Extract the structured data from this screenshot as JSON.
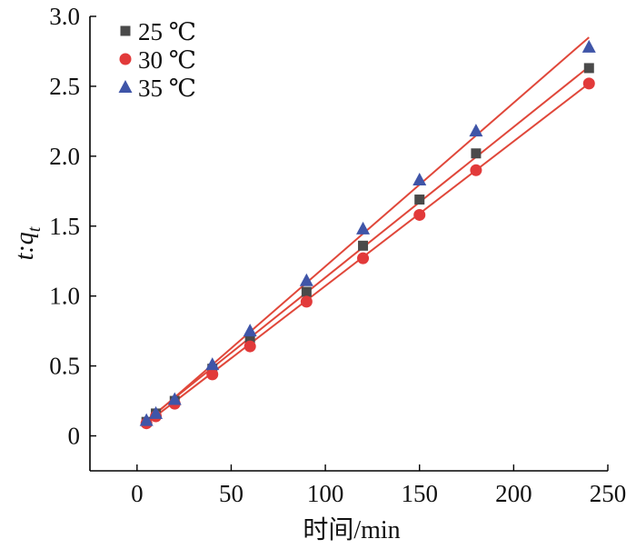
{
  "colors": {
    "axis": "#000000",
    "fit_line": "#e0473a",
    "series_25": "#4a4a4a",
    "series_30": "#e23a3a",
    "series_35": "#3f55a8"
  },
  "chart_data": {
    "type": "scatter",
    "title": "",
    "xlabel": "时间/min",
    "ylabel": "t:q_t",
    "ylabel_parts": {
      "main": "t:q",
      "subscript": "t"
    },
    "xlim": [
      -25,
      250
    ],
    "ylim": [
      -0.25,
      3.0
    ],
    "xticks": [
      0,
      50,
      100,
      150,
      200,
      250
    ],
    "yticks": [
      0,
      0.5,
      1.0,
      1.5,
      2.0,
      2.5,
      3.0
    ],
    "xtick_labels": [
      "0",
      "50",
      "100",
      "150",
      "200",
      "250"
    ],
    "ytick_labels": [
      "0",
      "0.5",
      "1.0",
      "1.5",
      "2.0",
      "2.5",
      "3.0"
    ],
    "grid": false,
    "legend_position": "top-left",
    "series": [
      {
        "name": "25 ℃",
        "marker": "square",
        "color": "#4a4a4a",
        "x": [
          5,
          10,
          20,
          40,
          60,
          90,
          120,
          150,
          180,
          240
        ],
        "y": [
          0.1,
          0.16,
          0.25,
          0.48,
          0.7,
          1.03,
          1.36,
          1.69,
          2.02,
          2.63
        ],
        "fit_line": {
          "x": [
            5,
            240
          ],
          "y": [
            0.11,
            2.64
          ]
        }
      },
      {
        "name": "30 ℃",
        "marker": "circle",
        "color": "#e23a3a",
        "x": [
          5,
          10,
          20,
          40,
          60,
          90,
          120,
          150,
          180,
          240
        ],
        "y": [
          0.09,
          0.14,
          0.23,
          0.44,
          0.64,
          0.96,
          1.27,
          1.58,
          1.9,
          2.52
        ],
        "fit_line": {
          "x": [
            5,
            240
          ],
          "y": [
            0.09,
            2.52
          ]
        }
      },
      {
        "name": "35 ℃",
        "marker": "triangle",
        "color": "#3f55a8",
        "x": [
          5,
          10,
          20,
          40,
          60,
          90,
          120,
          150,
          180,
          240
        ],
        "y": [
          0.11,
          0.16,
          0.26,
          0.51,
          0.75,
          1.11,
          1.48,
          1.83,
          2.18,
          2.78
        ],
        "fit_line": {
          "x": [
            5,
            240
          ],
          "y": [
            0.1,
            2.85
          ]
        }
      }
    ]
  }
}
